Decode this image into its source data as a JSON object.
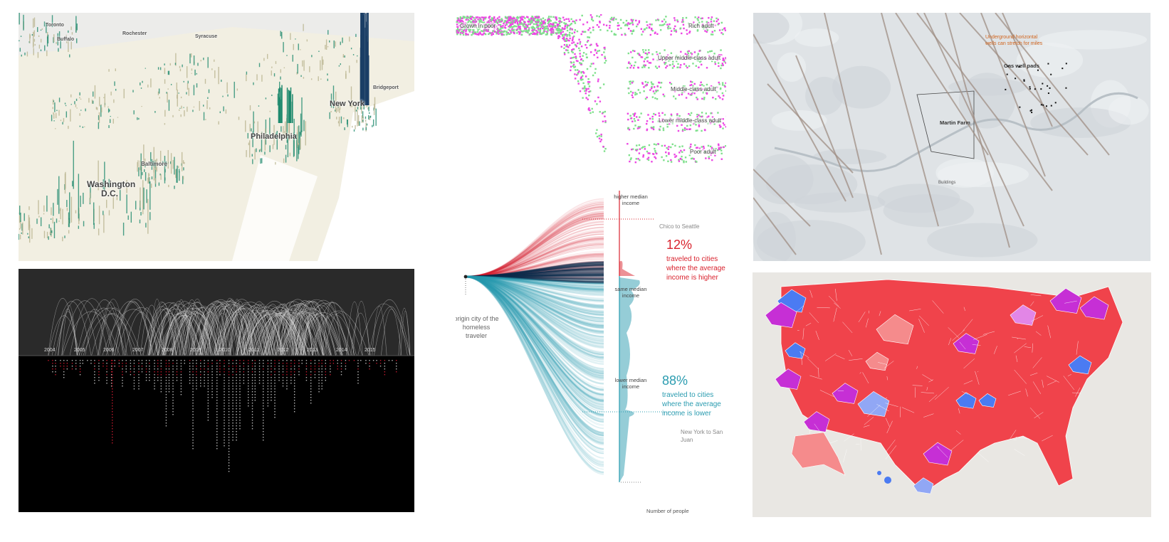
{
  "panels": {
    "density_map": {
      "cities": [
        "Toronto",
        "Rochester",
        "Syracuse",
        "Buffalo",
        "Bridgeport",
        "New York",
        "Philadelphia",
        "Baltimore",
        "Washington",
        "D.C."
      ],
      "colors": {
        "base": "#f2efe2",
        "spike": "#1f8a6e",
        "spike_dark": "#1b3f66",
        "water": "#e9ebee"
      }
    },
    "timeline": {
      "years": [
        "2004",
        "2005",
        "2006",
        "2007",
        "2008",
        "2009",
        "2010",
        "2011",
        "2012",
        "2013",
        "2014",
        "2015"
      ],
      "colors": {
        "background": "#000000",
        "top": "#2a2a2a",
        "arcs": "#d8d8d8",
        "dots": "#bbbbbb",
        "red": "#c0182c"
      }
    },
    "mobility": {
      "start_label": "Grown in poor",
      "end_labels": [
        "Rich adult",
        "Upper middle-class adult",
        "Middle-class adult",
        "Lower middle-class adult",
        "Poor adult"
      ],
      "colors": {
        "magenta": "#ec46e3",
        "green": "#7fe08c"
      }
    },
    "homeless": {
      "axis_labels": {
        "higher": "higher median income",
        "same": "same median income",
        "lower": "lower median income"
      },
      "origin_label": "origin city of the homeless traveler",
      "annotations": {
        "top": "Chico to Seattle",
        "bottom": "New York to San Juan"
      },
      "higher": {
        "pct": "12%",
        "text": "traveled to cities where the average income is higher"
      },
      "lower": {
        "pct": "88%",
        "text": "traveled to cities where the average income is lower"
      },
      "x_axis": "Number of people",
      "colors": {
        "red": "#d9232e",
        "blue": "#2b9cb0",
        "navy": "#0d2a4a"
      }
    },
    "gas_wells": {
      "annotations": {
        "orange": "Underground horizontal wells can stretch for miles",
        "pads": "Gas well pads",
        "farm": "Martin Farm",
        "buildings": "Buildings"
      },
      "colors": {
        "terrain": "#dfe3e6",
        "wells": "#a08f85",
        "annotation": "#d2651d"
      }
    },
    "us_map": {
      "colors": {
        "background": "#e9e7e3",
        "red": "#f0434b",
        "light_red": "#f58b8c",
        "purple": "#c62fd5",
        "pink": "#e286e6",
        "blue": "#4b7bf2",
        "light_blue": "#91a7f5"
      }
    }
  }
}
